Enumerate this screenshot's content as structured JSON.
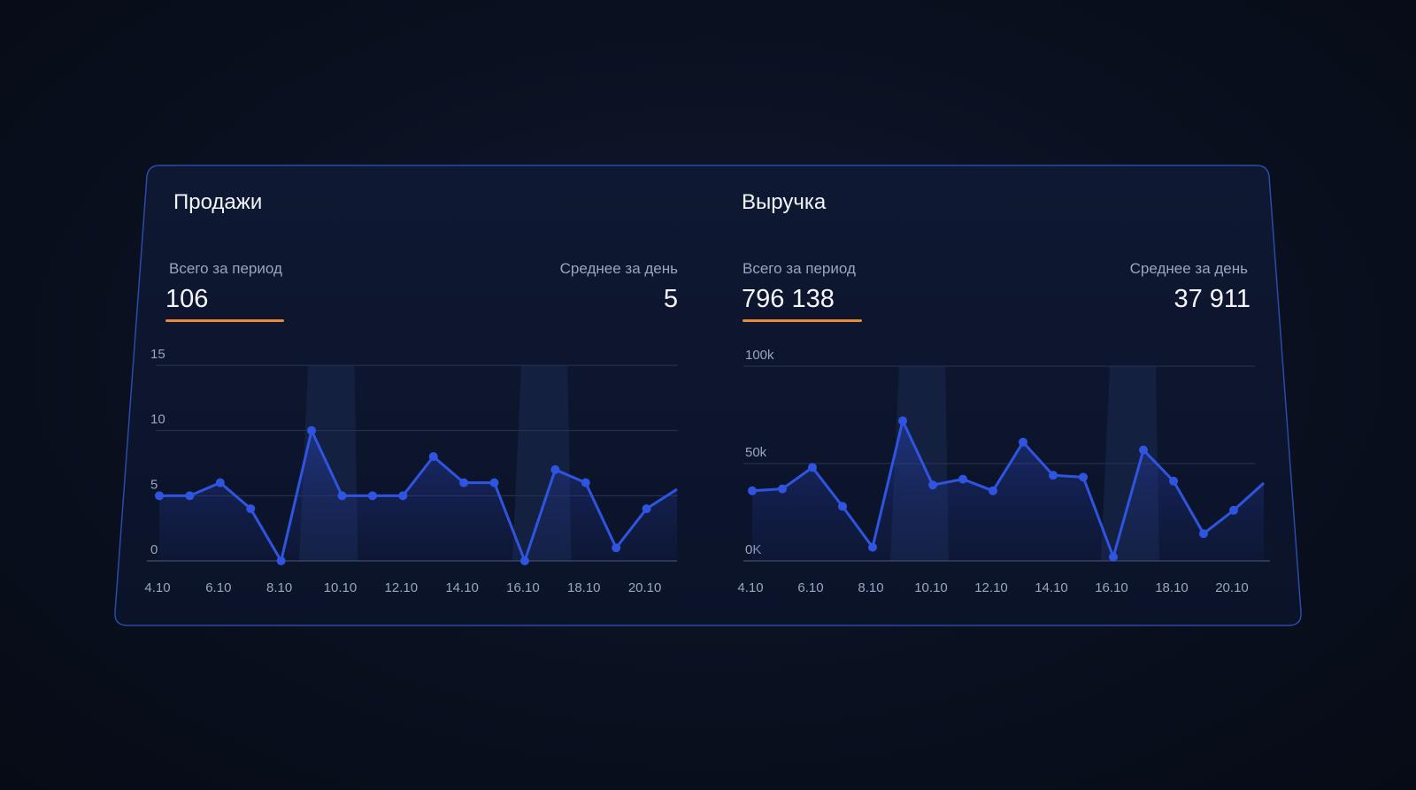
{
  "colors": {
    "background": "#0a1020",
    "card": "#0c142a",
    "card_border": "#2a4ba8",
    "line": "#2f55e0",
    "accent_underline": "#e98a3a",
    "grid": "#2b3550",
    "label": "#9aa6bd"
  },
  "panels": [
    {
      "title": "Продажи",
      "total_label": "Всего за период",
      "total_value": "106",
      "avg_label": "Среднее за день",
      "avg_value": "5"
    },
    {
      "title": "Выручка",
      "total_label": "Всего за период",
      "total_value": "796 138",
      "avg_label": "Среднее за день",
      "avg_value": "37 911"
    }
  ],
  "chart_data": [
    {
      "type": "area",
      "title": "Продажи",
      "x": [
        "4.10",
        "5.10",
        "6.10",
        "7.10",
        "8.10",
        "9.10",
        "10.10",
        "11.10",
        "12.10",
        "13.10",
        "14.10",
        "15.10",
        "16.10",
        "17.10",
        "18.10",
        "19.10",
        "20.10",
        "21.10"
      ],
      "tick_labels": [
        "4.10",
        "6.10",
        "8.10",
        "10.10",
        "12.10",
        "14.10",
        "16.10",
        "18.10",
        "20.10"
      ],
      "y_ticks": [
        "0",
        "5",
        "10",
        "15"
      ],
      "ylim": [
        0,
        15
      ],
      "values": [
        5,
        5,
        6,
        4,
        0,
        10,
        5,
        5,
        5,
        8,
        6,
        6,
        0,
        7,
        6,
        1,
        4,
        5.5
      ],
      "highlight_ranges": [
        [
          "9.10",
          "10.10"
        ],
        [
          "16.10",
          "17.10"
        ]
      ],
      "grid": true
    },
    {
      "type": "area",
      "title": "Выручка",
      "x": [
        "4.10",
        "5.10",
        "6.10",
        "7.10",
        "8.10",
        "9.10",
        "10.10",
        "11.10",
        "12.10",
        "13.10",
        "14.10",
        "15.10",
        "16.10",
        "17.10",
        "18.10",
        "19.10",
        "20.10",
        "21.10"
      ],
      "tick_labels": [
        "4.10",
        "6.10",
        "8.10",
        "10.10",
        "12.10",
        "14.10",
        "16.10",
        "18.10",
        "20.10"
      ],
      "y_ticks": [
        "0K",
        "50k",
        "100k"
      ],
      "ylim": [
        0,
        100000
      ],
      "values": [
        36000,
        37000,
        48000,
        28000,
        7000,
        72000,
        39000,
        42000,
        36000,
        61000,
        44000,
        43000,
        2000,
        57000,
        41000,
        14000,
        26000,
        40000
      ],
      "highlight_ranges": [
        [
          "9.10",
          "10.10"
        ],
        [
          "16.10",
          "17.10"
        ]
      ],
      "grid": true
    }
  ]
}
